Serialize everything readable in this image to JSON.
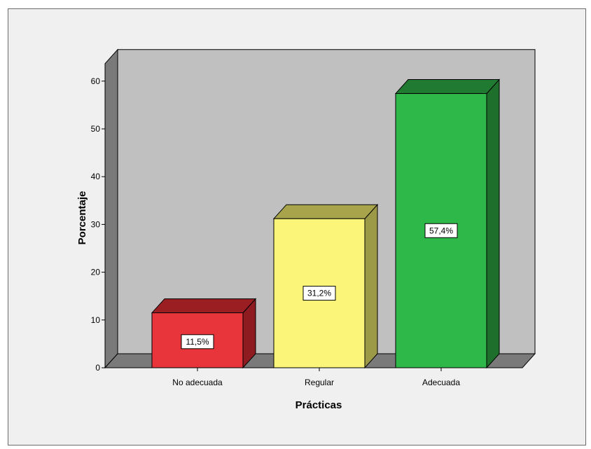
{
  "chart_data": {
    "type": "bar",
    "categories": [
      "No adecuada",
      "Regular",
      "Adecuada"
    ],
    "values": [
      11.5,
      31.2,
      57.4
    ],
    "value_labels": [
      "11,5%",
      "31,2%",
      "57,4%"
    ],
    "xlabel": "Prácticas",
    "ylabel": "Porcentaje",
    "ylim": [
      0,
      60
    ],
    "yticks": [
      0,
      10,
      20,
      30,
      40,
      50,
      60
    ],
    "grid": false,
    "style": "3d",
    "colors": [
      "#e8353b",
      "#fbf67a",
      "#2fb84a"
    ],
    "side_colors": [
      "#8e1b1f",
      "#9d9a47",
      "#1e6f2c"
    ],
    "top_colors": [
      "#9b1e22",
      "#a8a44c",
      "#217a31"
    ]
  }
}
